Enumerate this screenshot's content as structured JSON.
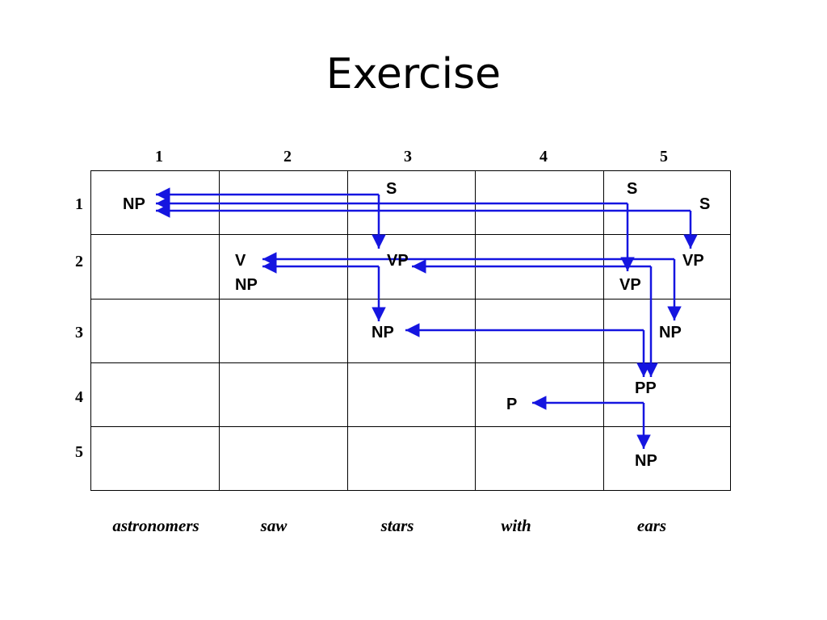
{
  "slide": {
    "title": "Exercise"
  },
  "chart": {
    "columns": [
      "1",
      "2",
      "3",
      "4",
      "5"
    ],
    "rows": [
      "1",
      "2",
      "3",
      "4",
      "5"
    ],
    "words": [
      "astronomers",
      "saw",
      "stars",
      "with",
      "ears"
    ],
    "cells": {
      "r1c1_np": "NP",
      "r1c3_s": "S",
      "r1c5_s_a": "S",
      "r1c5_s_b": "S",
      "r2c2_v": "V",
      "r2c2_np": "NP",
      "r2c3_vp": "VP",
      "r2c5_vp_a": "VP",
      "r2c5_vp_b": "VP",
      "r3c3_np": "NP",
      "r3c5_np": "NP",
      "r4c4_p": "P",
      "r4c5_pp": "PP",
      "r5c5_np": "NP"
    },
    "colors": {
      "arrow": "#1515e0",
      "grid": "#000000"
    }
  }
}
